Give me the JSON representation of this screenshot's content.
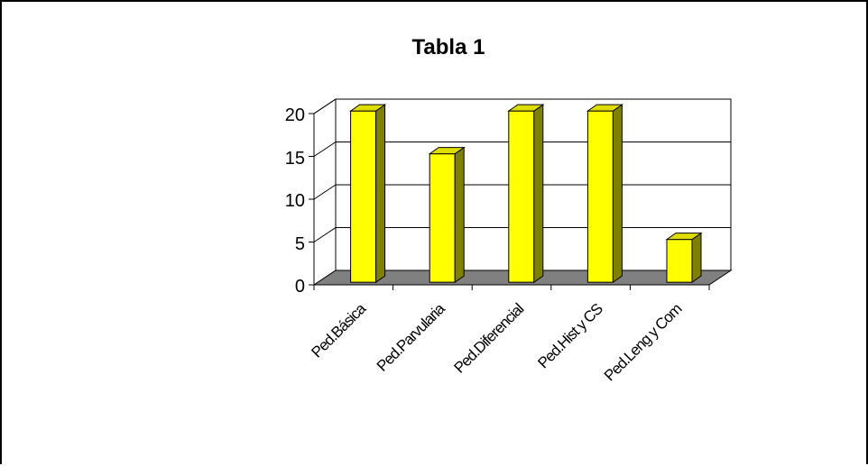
{
  "chart_data": {
    "type": "bar",
    "title": "Tabla 1",
    "categories": [
      "Ped.Básica",
      "Ped.Parvularia",
      "Ped.Diferencial",
      "Ped.Hist y CS",
      "Ped.Leng y Com"
    ],
    "values": [
      20,
      15,
      20,
      20,
      5
    ],
    "yticks": [
      "0",
      "5",
      "10",
      "15",
      "20"
    ],
    "ylim": [
      0,
      20
    ],
    "grid": true,
    "legend": "none",
    "colors": {
      "bar_front": "#ffff00",
      "bar_side": "#808000",
      "bar_top": "#dddd00",
      "floor": "#808080"
    }
  }
}
